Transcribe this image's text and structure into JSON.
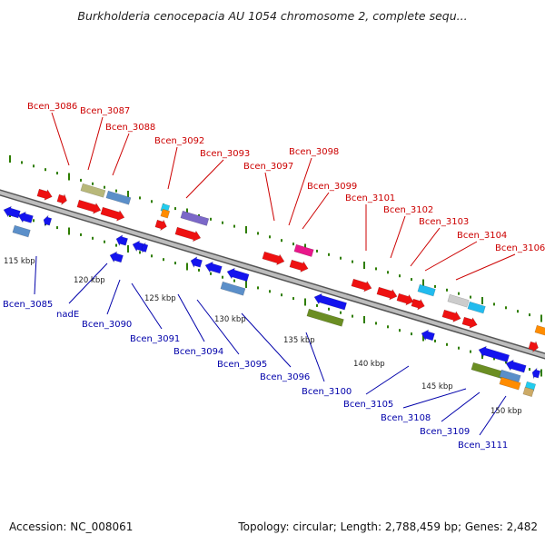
{
  "title": "Burkholderia cenocepacia AU 1054 chromosome 2, complete sequ...",
  "footer": {
    "accession": "Accession: NC_008061",
    "topology": "Topology: circular; Length: 2,788,459 bp; Genes: 2,482"
  },
  "colors": {
    "forward_label": "#cc0000",
    "reverse_label": "#0000aa",
    "backbone": "#888888",
    "tick": "#2e7d00"
  },
  "scale_labels": [
    "115 kbp",
    "120 kbp",
    "125 kbp",
    "130 kbp",
    "135 kbp",
    "140 kbp",
    "145 kbp",
    "150 kbp"
  ],
  "forward_labels": [
    "Bcen_3086",
    "Bcen_3087",
    "Bcen_3088",
    "Bcen_3092",
    "Bcen_3093",
    "Bcen_3097",
    "Bcen_3098",
    "Bcen_3099",
    "Bcen_3101",
    "Bcen_3102",
    "Bcen_3103",
    "Bcen_3104",
    "Bcen_3106"
  ],
  "reverse_labels": [
    "Bcen_3085",
    "nadE",
    "Bcen_3090",
    "Bcen_3091",
    "Bcen_3094",
    "Bcen_3095",
    "Bcen_3096",
    "Bcen_3100",
    "Bcen_3105",
    "Bcen_3108",
    "Bcen_3109",
    "Bcen_3111"
  ]
}
